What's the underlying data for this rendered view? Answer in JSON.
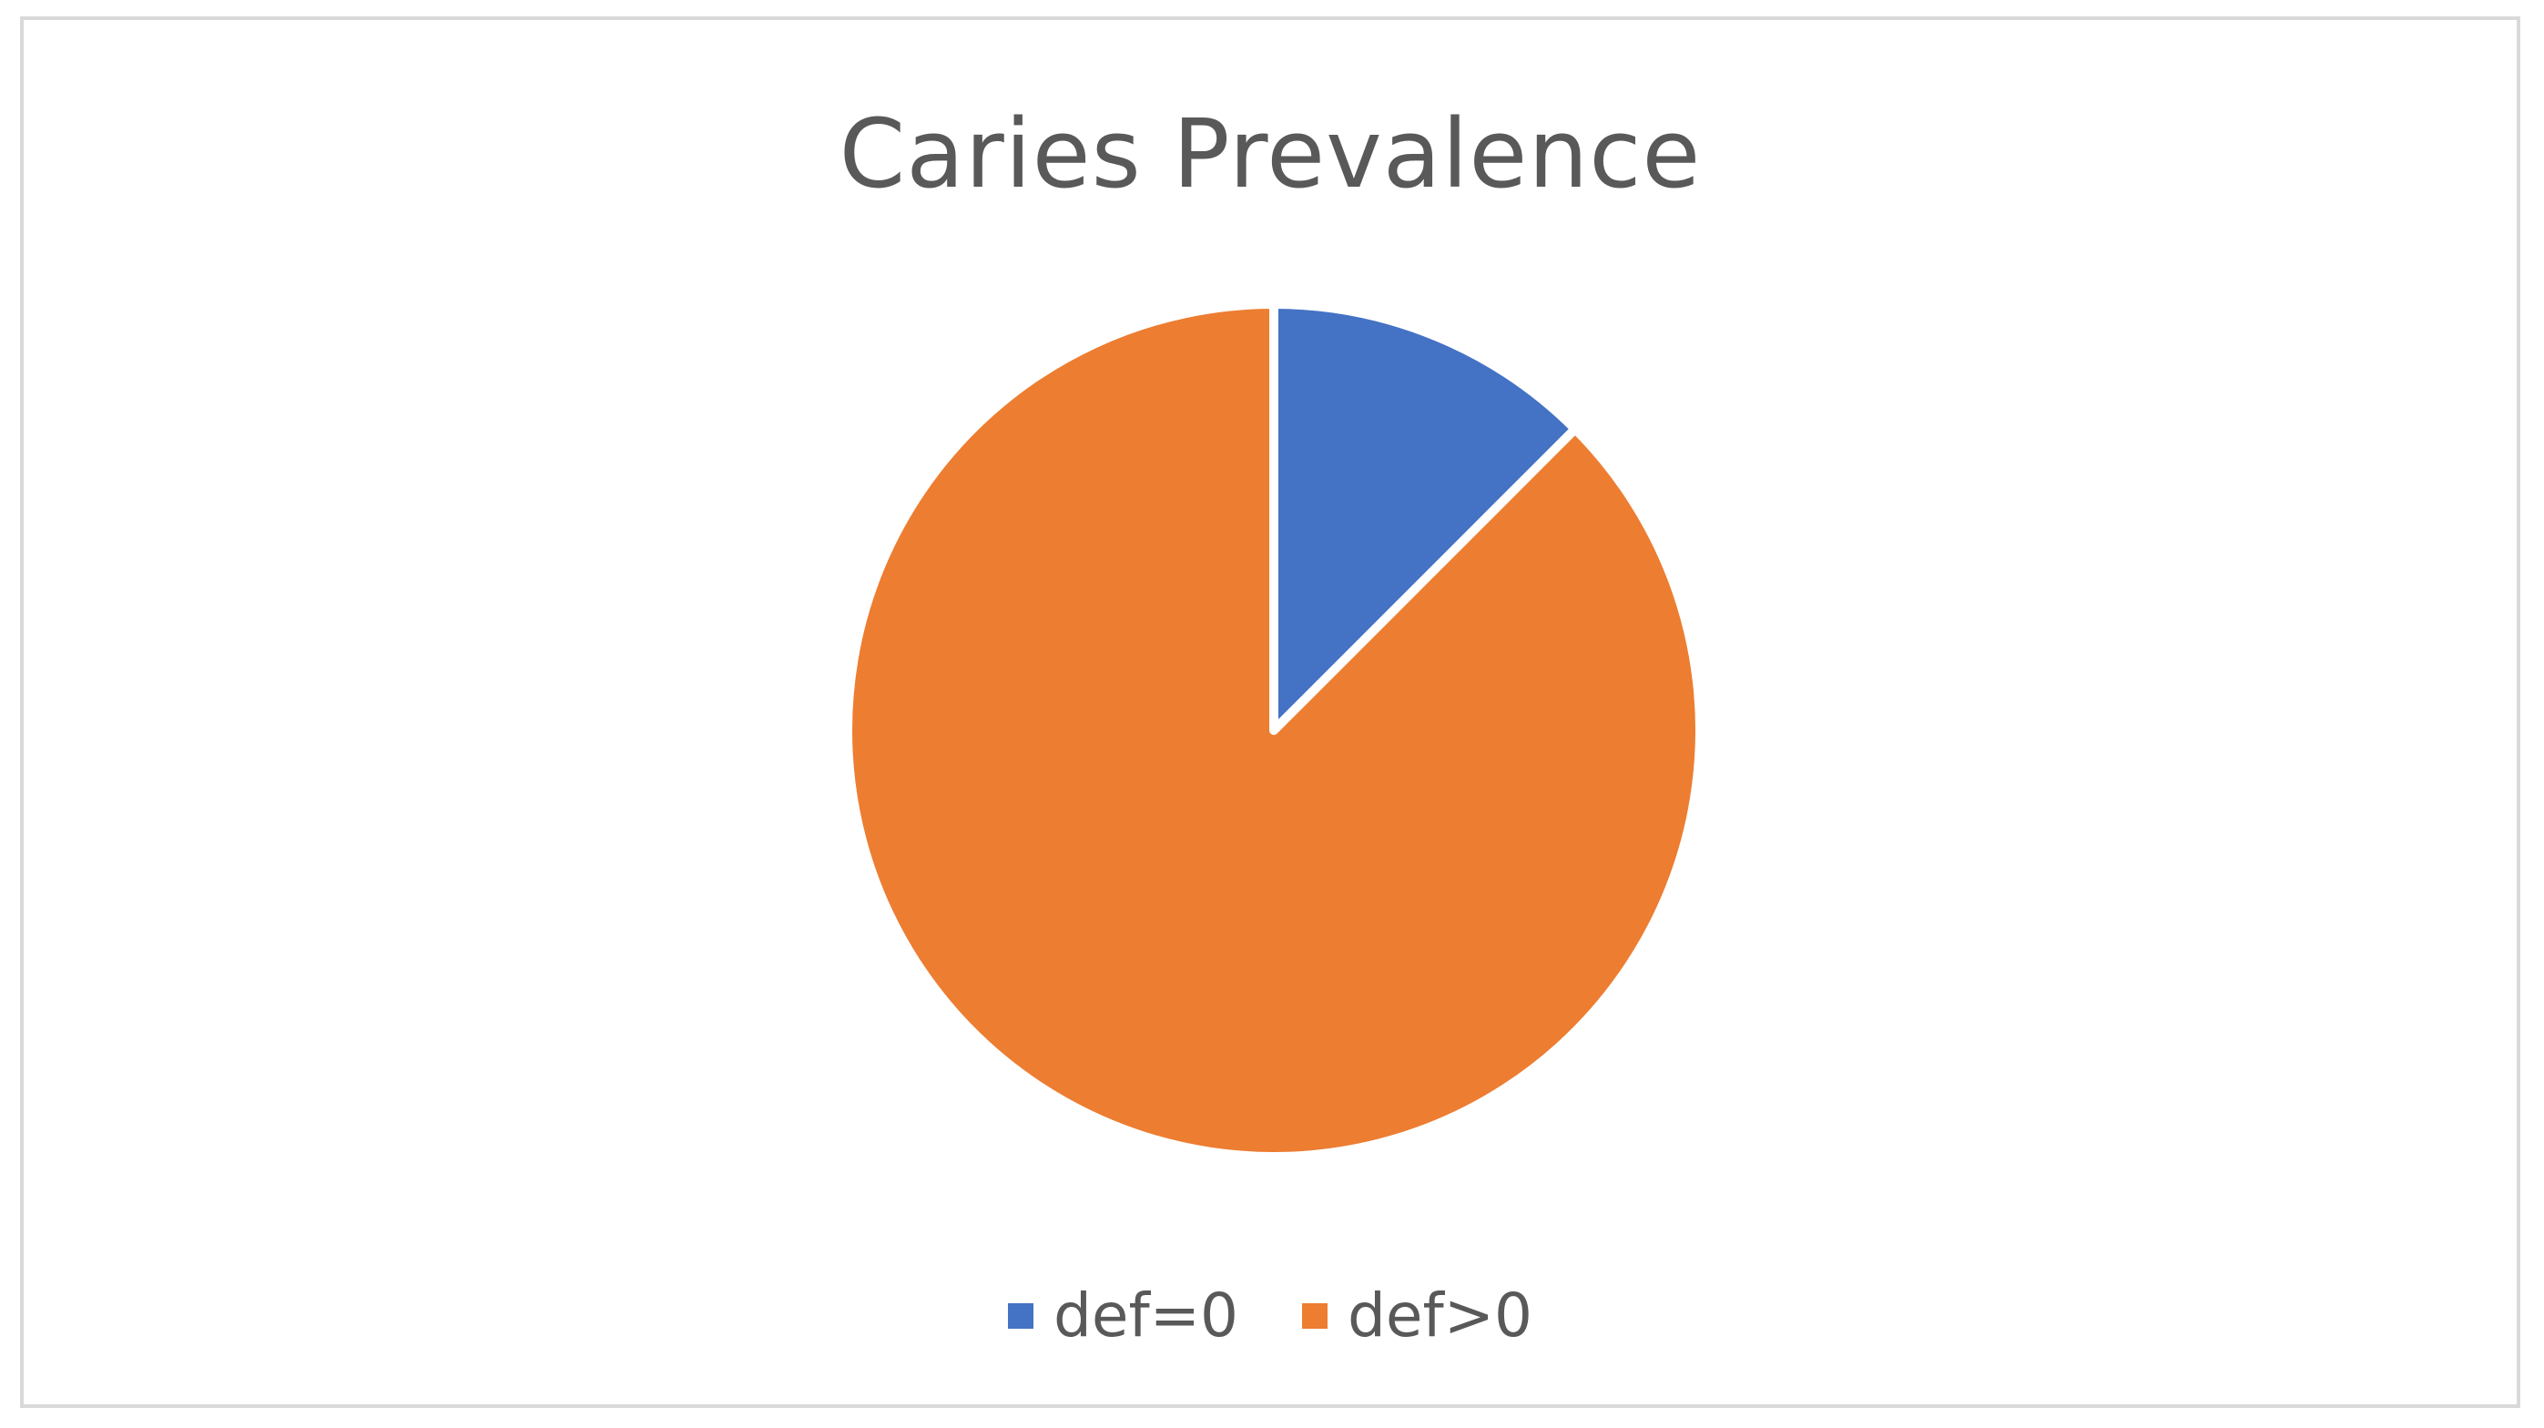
{
  "chart_data": {
    "type": "pie",
    "title": "Caries Prevalence",
    "categories": [
      "def=0",
      "def>0"
    ],
    "values": [
      12.5,
      87.5
    ],
    "colors": [
      "#4472C4",
      "#ED7D31"
    ],
    "start_angle_deg": 0,
    "direction": "clockwise",
    "legend_position": "bottom"
  }
}
